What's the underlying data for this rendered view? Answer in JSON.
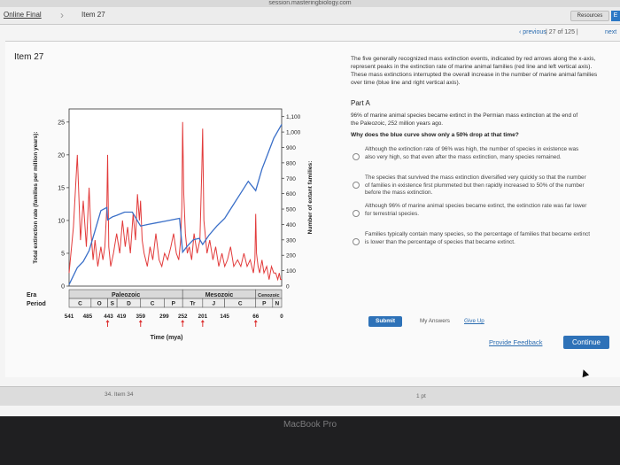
{
  "browser": {
    "url": "session.masteringbiology.com"
  },
  "topbar": {
    "tab_left": "Online Final",
    "tab_current": "Item 27",
    "resources_label": "Resources",
    "resources_badge": "E"
  },
  "nav": {
    "previous": "‹ previous",
    "counter": "27 of 125",
    "next": "next"
  },
  "item_title": "Item 27",
  "intro_text": "The five generally recognized mass extinction events, indicated by red arrows along the x-axis, represent peaks in the extinction rate of marine animal families (red line and left vertical axis). These mass extinctions interrupted the overall increase in the number of marine animal families over time (blue line and right vertical axis).",
  "part": {
    "title": "Part A",
    "question": "96% of marine animal species became extinct in the Permian mass extinction at the end of the Paleozoic, 252 million years ago.",
    "ask": "Why does the blue curve show only a 50% drop at that time?",
    "options": [
      "Although the extinction rate of 96% was high, the number of species in existence was also very high, so that even after the mass extinction, many species remained.",
      "The species that survived the mass extinction diversified very quickly so that the number of families in existence first plummeted but then rapidly increased to 50% of the number before the mass extinction.",
      "Although 96% of marine animal species became extinct, the extinction rate was far lower for terrestrial species.",
      "Families typically contain many species, so the percentage of families that became extinct is lower than the percentage of species that became extinct."
    ]
  },
  "actions": {
    "submit": "Submit",
    "my_answers": "My Answers",
    "give_up": "Give Up",
    "feedback": "Provide Feedback",
    "continue": "Continue"
  },
  "bottom": {
    "item": "34. Item 34",
    "points": "1 pt"
  },
  "device": {
    "label": "MacBook Pro"
  },
  "chart_data": {
    "type": "line",
    "xlabel": "Time (mya)",
    "ylabel_left": "Total extinction rate (families per million years):",
    "ylabel_right": "Number of extant families:",
    "xlim": [
      541,
      0
    ],
    "ylim_left": [
      0,
      27
    ],
    "ylim_right": [
      0,
      1150
    ],
    "left_ticks": [
      "0",
      "5",
      "10",
      "15",
      "20",
      "25"
    ],
    "right_ticks": [
      "100",
      "200",
      "300",
      "400",
      "500",
      "600",
      "700",
      "800",
      "900",
      "1,000",
      "1,100"
    ],
    "x_ticks": [
      "541",
      "485",
      "443",
      "419",
      "359",
      "299",
      "252",
      "201",
      "145",
      "66",
      "0"
    ],
    "x_tick_values": [
      541,
      485,
      443,
      419,
      359,
      299,
      252,
      201,
      145,
      66,
      0
    ],
    "extinction_arrows": [
      443,
      359,
      252,
      201,
      66
    ],
    "eras": [
      {
        "name": "Paleozoic",
        "from": 541,
        "to": 252
      },
      {
        "name": "Mesozoic",
        "from": 252,
        "to": 66
      },
      {
        "name": "Cenozoic",
        "from": 66,
        "to": 0
      }
    ],
    "periods": [
      {
        "name": "C",
        "from": 541,
        "to": 485
      },
      {
        "name": "O",
        "from": 485,
        "to": 443
      },
      {
        "name": "S",
        "from": 443,
        "to": 419
      },
      {
        "name": "D",
        "from": 419,
        "to": 359
      },
      {
        "name": "C",
        "from": 359,
        "to": 299
      },
      {
        "name": "P",
        "from": 299,
        "to": 252
      },
      {
        "name": "Tr",
        "from": 252,
        "to": 201
      },
      {
        "name": "J",
        "from": 201,
        "to": 145
      },
      {
        "name": "C",
        "from": 145,
        "to": 66
      },
      {
        "name": "P",
        "from": 66,
        "to": 23
      },
      {
        "name": "N",
        "from": 23,
        "to": 0
      }
    ],
    "era_label": "Era",
    "period_label": "Period",
    "series": [
      {
        "axis": "left",
        "color": "#e23b3b",
        "x": [
          541,
          530,
          520,
          512,
          505,
          497,
          490,
          485,
          480,
          475,
          468,
          460,
          455,
          450,
          445,
          443,
          440,
          435,
          428,
          420,
          412,
          405,
          398,
          392,
          385,
          378,
          372,
          367,
          362,
          359,
          355,
          350,
          342,
          335,
          328,
          320,
          312,
          305,
          298,
          290,
          282,
          275,
          268,
          262,
          257,
          254,
          252,
          249,
          245,
          240,
          235,
          229,
          223,
          215,
          208,
          203,
          201,
          198,
          190,
          183,
          175,
          168,
          160,
          152,
          145,
          138,
          130,
          122,
          112,
          104,
          96,
          88,
          80,
          72,
          68,
          66,
          64,
          60,
          56,
          50,
          45,
          38,
          32,
          26,
          20,
          15,
          10,
          6,
          3,
          0
        ],
        "y": [
          2,
          9,
          20,
          7,
          13,
          6,
          15,
          8,
          4,
          7,
          3,
          6,
          4,
          6,
          12,
          20,
          6,
          3,
          5,
          8,
          5,
          10,
          6,
          9,
          5,
          11,
          7,
          14,
          10,
          13,
          7,
          5,
          3,
          6,
          4,
          8,
          4,
          3,
          5,
          4,
          6,
          8,
          5,
          4,
          7,
          12,
          25,
          14,
          8,
          5,
          6,
          4,
          8,
          5,
          7,
          18,
          24,
          10,
          5,
          7,
          4,
          6,
          3,
          5,
          3,
          4,
          6,
          3,
          4,
          3,
          5,
          3,
          4,
          2,
          4,
          11,
          5,
          3,
          2,
          4,
          2,
          3,
          1,
          3,
          2,
          2,
          1,
          2,
          1,
          1
        ]
      },
      {
        "axis": "right",
        "color": "#3a6fc8",
        "x": [
          541,
          520,
          505,
          490,
          475,
          460,
          445,
          443,
          430,
          419,
          400,
          380,
          359,
          340,
          320,
          300,
          280,
          260,
          252,
          240,
          225,
          210,
          201,
          185,
          165,
          145,
          125,
          105,
          85,
          66,
          50,
          35,
          20,
          0
        ],
        "y": [
          10,
          120,
          160,
          230,
          360,
          490,
          510,
          430,
          450,
          460,
          480,
          480,
          390,
          400,
          410,
          420,
          430,
          440,
          220,
          260,
          300,
          310,
          270,
          330,
          390,
          440,
          520,
          600,
          680,
          620,
          760,
          860,
          960,
          1050
        ]
      }
    ]
  }
}
